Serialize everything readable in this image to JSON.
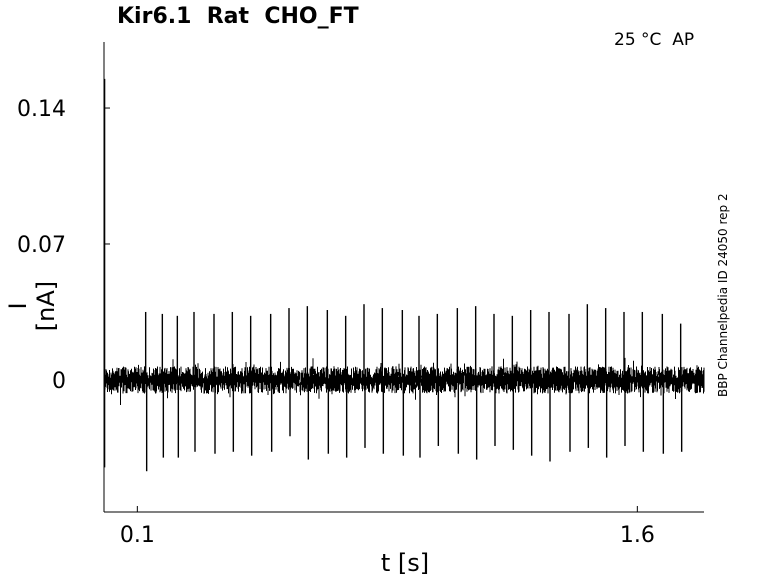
{
  "chart_data": {
    "type": "line",
    "title": "Kir6.1  Rat  CHO_FT",
    "conditions": "25 °C  AP",
    "side_label": "BBP Channelpedia ID 24050 rep 2",
    "xlabel": "t [s]",
    "ylabel": "I [nA]",
    "x_ticks": [
      0.1,
      1.6
    ],
    "x_tick_labels": [
      "0.1",
      "1.6"
    ],
    "y_ticks": [
      0,
      0.07,
      0.14
    ],
    "y_tick_labels": [
      "0",
      "0.07",
      "0.14"
    ],
    "xlim": [
      0.0,
      1.8
    ],
    "ylim": [
      -0.068,
      0.174
    ],
    "grid": false,
    "series": [
      {
        "noise_band": [
          -0.007,
          0.007
        ],
        "initial_transient": {
          "x": 0.0,
          "min": -0.045,
          "max": 0.155
        },
        "spikes": [
          {
            "x": 0.125,
            "up": 0.035,
            "down": -0.047
          },
          {
            "x": 0.175,
            "up": 0.034,
            "down": -0.04
          },
          {
            "x": 0.22,
            "up": 0.033,
            "down": -0.04
          },
          {
            "x": 0.27,
            "up": 0.035,
            "down": -0.037
          },
          {
            "x": 0.33,
            "up": 0.034,
            "down": -0.038
          },
          {
            "x": 0.385,
            "up": 0.035,
            "down": -0.037
          },
          {
            "x": 0.44,
            "up": 0.033,
            "down": -0.039
          },
          {
            "x": 0.5,
            "up": 0.034,
            "down": -0.037
          },
          {
            "x": 0.555,
            "up": 0.037,
            "down": -0.029
          },
          {
            "x": 0.61,
            "up": 0.038,
            "down": -0.041
          },
          {
            "x": 0.67,
            "up": 0.036,
            "down": -0.038
          },
          {
            "x": 0.725,
            "up": 0.033,
            "down": -0.04
          },
          {
            "x": 0.78,
            "up": 0.039,
            "down": -0.035
          },
          {
            "x": 0.835,
            "up": 0.037,
            "down": -0.038
          },
          {
            "x": 0.895,
            "up": 0.036,
            "down": -0.039
          },
          {
            "x": 0.945,
            "up": 0.033,
            "down": -0.04
          },
          {
            "x": 1.0,
            "up": 0.034,
            "down": -0.034
          },
          {
            "x": 1.06,
            "up": 0.037,
            "down": -0.038
          },
          {
            "x": 1.115,
            "up": 0.038,
            "down": -0.041
          },
          {
            "x": 1.17,
            "up": 0.034,
            "down": -0.034
          },
          {
            "x": 1.225,
            "up": 0.033,
            "down": -0.036
          },
          {
            "x": 1.28,
            "up": 0.036,
            "down": -0.039
          },
          {
            "x": 1.335,
            "up": 0.035,
            "down": -0.042
          },
          {
            "x": 1.395,
            "up": 0.034,
            "down": -0.037
          },
          {
            "x": 1.45,
            "up": 0.039,
            "down": -0.035
          },
          {
            "x": 1.505,
            "up": 0.037,
            "down": -0.04
          },
          {
            "x": 1.56,
            "up": 0.035,
            "down": -0.034
          },
          {
            "x": 1.615,
            "up": 0.035,
            "down": -0.037
          },
          {
            "x": 1.675,
            "up": 0.034,
            "down": -0.038
          },
          {
            "x": 1.73,
            "up": 0.029,
            "down": -0.037
          }
        ]
      }
    ]
  }
}
